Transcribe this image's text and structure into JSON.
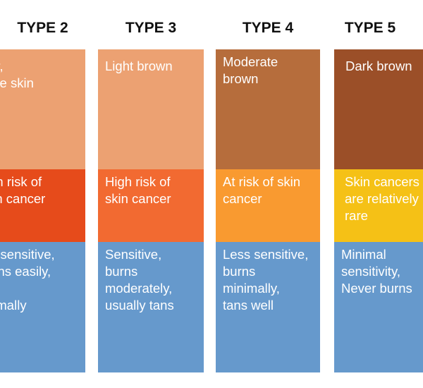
{
  "columns": [
    {
      "title": "TYPE 2",
      "tone": "air,\nhite skin",
      "risk": "igh risk of\nkin cancer",
      "sensitivity": "ry sensitive,\nurns easily,\nns\nnimally",
      "colors": {
        "tone": "#eca172",
        "risk": "#e64b1b",
        "sensitivity": "#6699cc"
      }
    },
    {
      "title": "TYPE 3",
      "tone": "Light brown",
      "risk": "High risk of\nskin cancer",
      "sensitivity": "Sensitive,\nburns\nmoderately,\nusually tans",
      "colors": {
        "tone": "#eca172",
        "risk": "#f26a31",
        "sensitivity": "#6699cc"
      }
    },
    {
      "title": "TYPE 4",
      "tone": "Moderate\nbrown",
      "risk": "At risk of skin\ncancer",
      "sensitivity": "Less sensitive,\nburns\nminimally,\ntans well",
      "colors": {
        "tone": "#b66d3c",
        "risk": "#f99a30",
        "sensitivity": "#6699cc"
      }
    },
    {
      "title": "TYPE 5",
      "tone": "Dark brown",
      "risk": "Skin cancers\nare relatively\nrare",
      "sensitivity": "Minimal\nsensitivity,\nNever burns",
      "colors": {
        "tone": "#9b4f28",
        "risk": "#f5c116",
        "sensitivity": "#6699cc"
      }
    }
  ]
}
